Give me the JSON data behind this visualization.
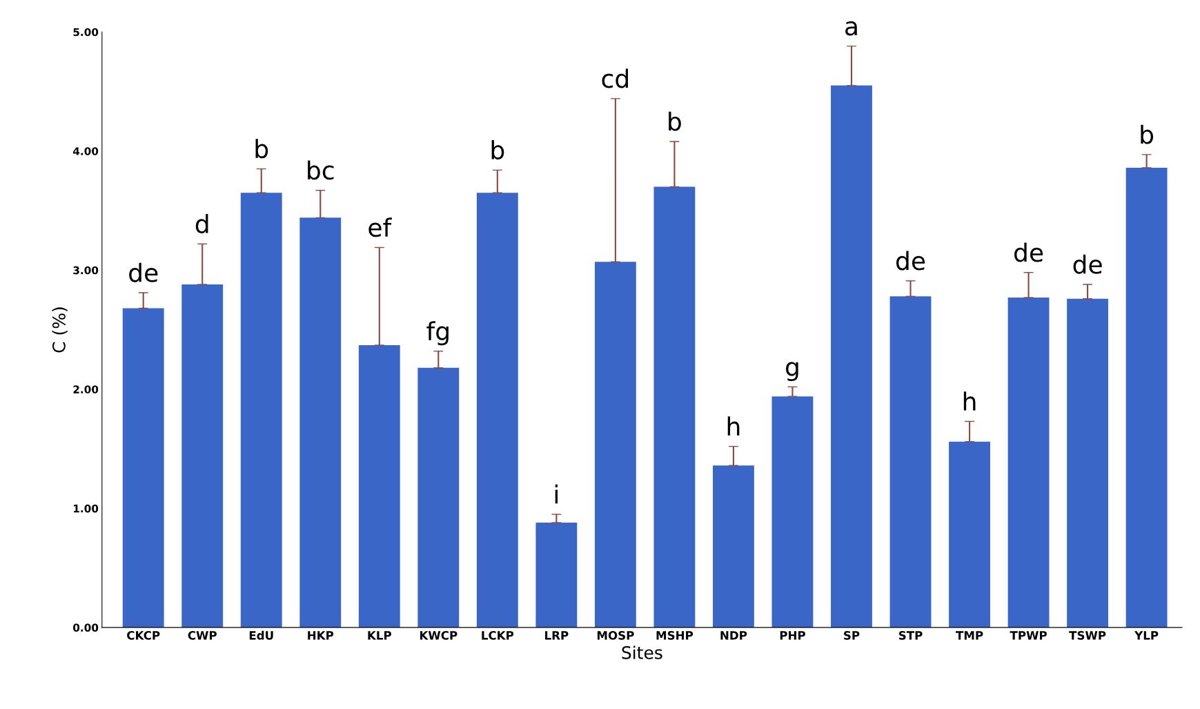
{
  "chart_data": {
    "type": "bar",
    "xlabel": "Sites",
    "ylabel": "C (%)",
    "categories": [
      "CKCP",
      "CWP",
      "EdU",
      "HKP",
      "KLP",
      "KWCP",
      "LCKP",
      "LRP",
      "MOSP",
      "MSHP",
      "NDP",
      "PHP",
      "SP",
      "STP",
      "TMP",
      "TPWP",
      "TSWP",
      "YLP"
    ],
    "values": [
      2.68,
      2.88,
      3.65,
      3.44,
      2.37,
      2.18,
      3.65,
      0.88,
      3.07,
      3.7,
      1.36,
      1.94,
      4.55,
      2.78,
      1.56,
      2.77,
      2.76,
      3.86
    ],
    "errors": [
      [
        2.68,
        2.81
      ],
      [
        2.88,
        3.22
      ],
      [
        3.65,
        3.85
      ],
      [
        3.44,
        3.67
      ],
      [
        2.37,
        3.19
      ],
      [
        2.18,
        2.32
      ],
      [
        3.65,
        3.84
      ],
      [
        0.88,
        0.95
      ],
      [
        3.07,
        4.44
      ],
      [
        3.7,
        4.08
      ],
      [
        1.36,
        1.52
      ],
      [
        1.94,
        2.02
      ],
      [
        4.55,
        4.88
      ],
      [
        2.78,
        2.91
      ],
      [
        1.56,
        1.73
      ],
      [
        2.77,
        2.98
      ],
      [
        2.76,
        2.88
      ],
      [
        3.86,
        3.97
      ]
    ],
    "color": "#3a66c8",
    "ylim": [
      0,
      5
    ],
    "yticks": [
      {
        "value": 0,
        "label": "0.00"
      },
      {
        "value": 1,
        "label": "1.00"
      },
      {
        "value": 2,
        "label": "2.00"
      },
      {
        "value": 3,
        "label": "3.00"
      },
      {
        "value": 4,
        "label": "4.00"
      },
      {
        "value": 5,
        "label": "5.00"
      }
    ],
    "grid": false,
    "legend": false,
    "annotations": [
      "de",
      "d",
      "b",
      "bc",
      "ef",
      "fg",
      "b",
      "i",
      "cd",
      "b",
      "h",
      "g",
      "a",
      "de",
      "h",
      "de",
      "de",
      "b"
    ]
  }
}
